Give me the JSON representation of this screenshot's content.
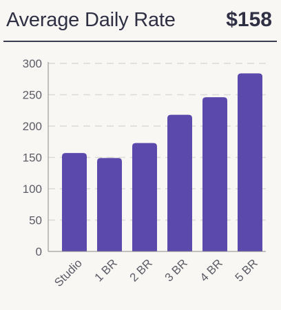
{
  "header": {
    "title": "Average Daily Rate",
    "value": "$158"
  },
  "colors": {
    "bar": "#5b4aab",
    "grid": "#dcdad6",
    "axis": "#8a8a8a"
  },
  "chart_data": {
    "type": "bar",
    "categories": [
      "Studio",
      "1 BR",
      "2 BR",
      "3 BR",
      "4 BR",
      "5 BR"
    ],
    "values": [
      157,
      149,
      173,
      218,
      246,
      284
    ],
    "yticks": [
      0,
      50,
      100,
      150,
      200,
      250,
      300
    ],
    "ylim": [
      0,
      300
    ],
    "grid": true,
    "title": "",
    "xlabel": "",
    "ylabel": ""
  }
}
